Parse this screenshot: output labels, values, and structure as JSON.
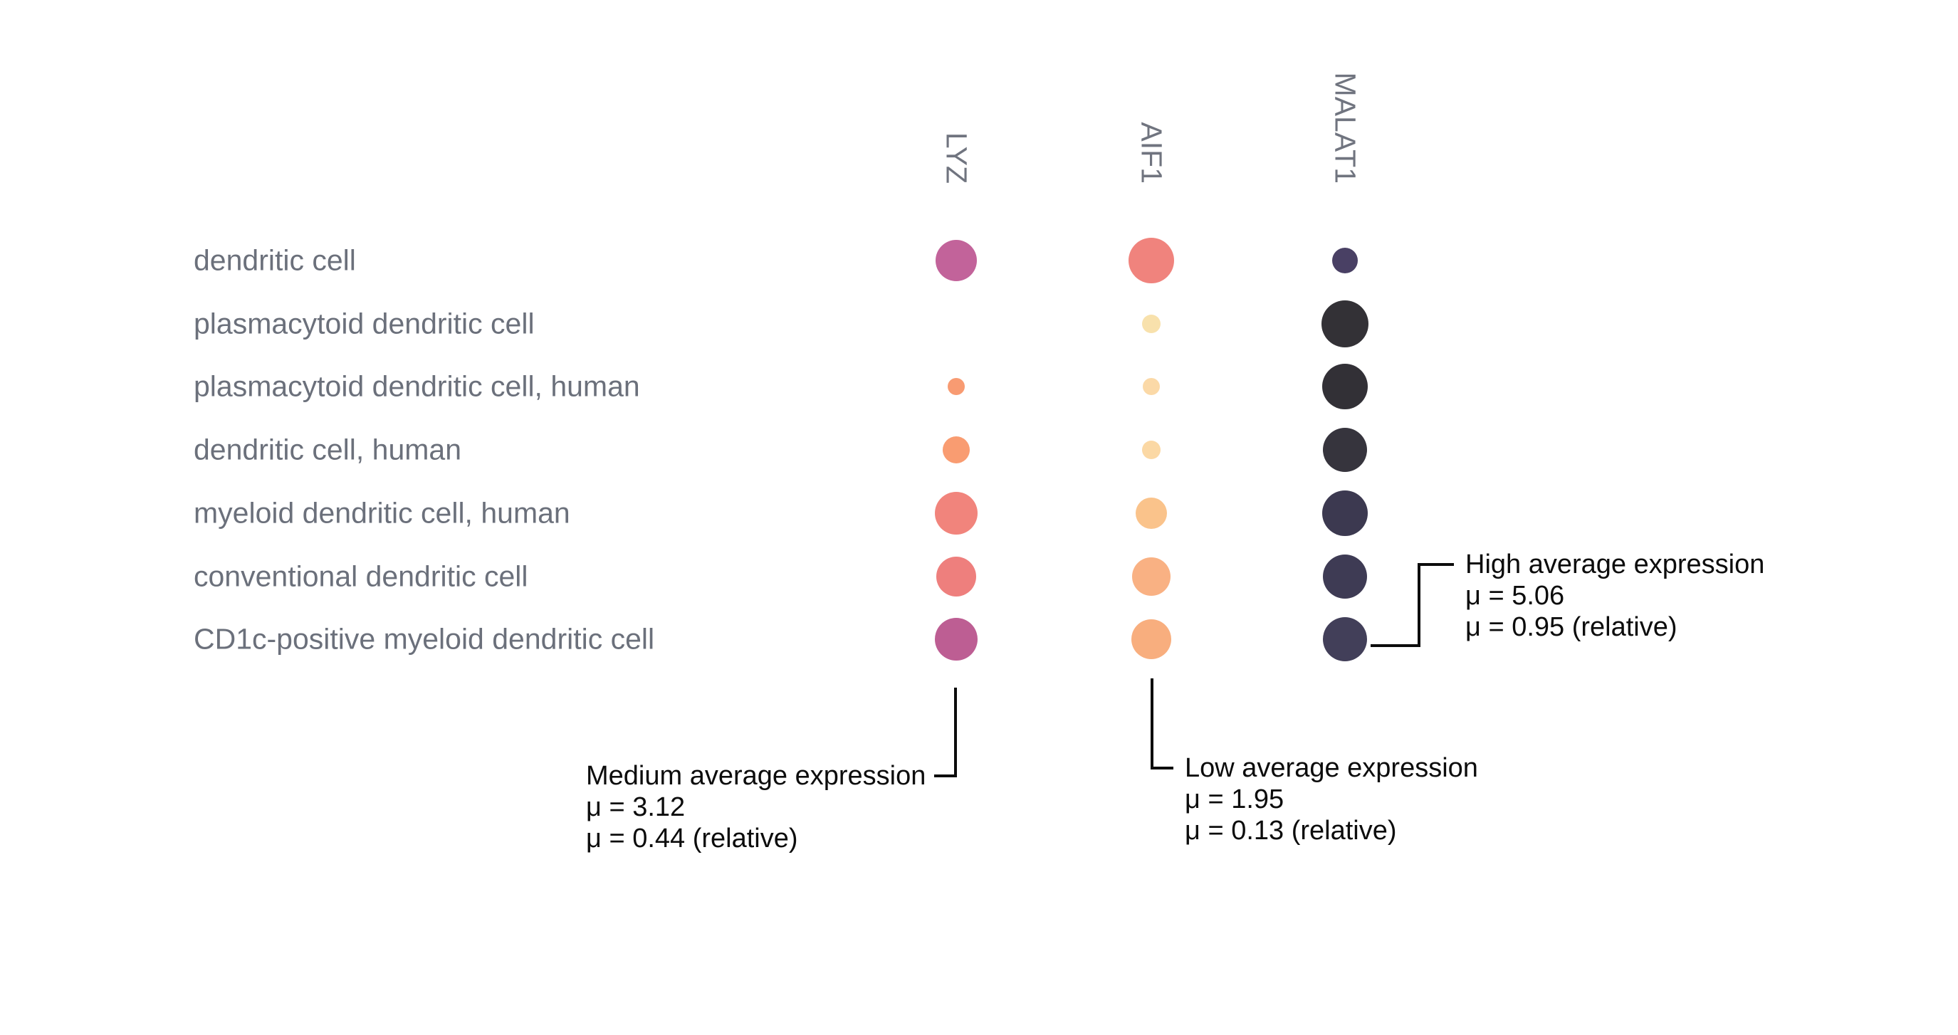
{
  "chart_data": {
    "type": "scatter",
    "subtype": "dot-plot-gene-expression",
    "title": "",
    "grid": false,
    "legend_position": "none",
    "columns": [
      "LYZ",
      "AIF1",
      "MALAT1"
    ],
    "rows": [
      "dendritic cell",
      "plasmacytoid dendritic cell",
      "plasmacytoid dendritic cell, human",
      "dendritic cell, human",
      "myeloid dendritic cell, human",
      "conventional dendritic cell",
      "CD1c-positive myeloid dendritic cell"
    ],
    "dots": [
      {
        "row": "dendritic cell",
        "cells": [
          {
            "gene": "LYZ",
            "radius": 29,
            "color": "#c2639a"
          },
          {
            "gene": "AIF1",
            "radius": 32,
            "color": "#f0837d"
          },
          {
            "gene": "MALAT1",
            "radius": 18,
            "color": "#494064"
          }
        ]
      },
      {
        "row": "plasmacytoid dendritic cell",
        "cells": [
          {
            "gene": "LYZ",
            "radius": 0,
            "color": null
          },
          {
            "gene": "AIF1",
            "radius": 13,
            "color": "#f8e1ac"
          },
          {
            "gene": "MALAT1",
            "radius": 33,
            "color": "#333136"
          }
        ]
      },
      {
        "row": "plasmacytoid dendritic cell, human",
        "cells": [
          {
            "gene": "LYZ",
            "radius": 12,
            "color": "#f89b72"
          },
          {
            "gene": "AIF1",
            "radius": 12,
            "color": "#fbd9a7"
          },
          {
            "gene": "MALAT1",
            "radius": 32,
            "color": "#323036"
          }
        ]
      },
      {
        "row": "dendritic cell, human",
        "cells": [
          {
            "gene": "LYZ",
            "radius": 19,
            "color": "#f99c71"
          },
          {
            "gene": "AIF1",
            "radius": 13,
            "color": "#fbd8a4"
          },
          {
            "gene": "MALAT1",
            "radius": 31,
            "color": "#36343d"
          }
        ]
      },
      {
        "row": "myeloid dendritic cell, human",
        "cells": [
          {
            "gene": "LYZ",
            "radius": 30,
            "color": "#f1847c"
          },
          {
            "gene": "AIF1",
            "radius": 22,
            "color": "#fac38b"
          },
          {
            "gene": "MALAT1",
            "radius": 32,
            "color": "#3c3950"
          }
        ]
      },
      {
        "row": "conventional dendritic cell",
        "cells": [
          {
            "gene": "LYZ",
            "radius": 28,
            "color": "#ee7f7d"
          },
          {
            "gene": "AIF1",
            "radius": 27,
            "color": "#f9b183"
          },
          {
            "gene": "MALAT1",
            "radius": 31,
            "color": "#3e3b54"
          }
        ]
      },
      {
        "row": "CD1c-positive myeloid dendritic cell",
        "cells": [
          {
            "gene": "LYZ",
            "radius": 30,
            "color": "#bd5e93"
          },
          {
            "gene": "AIF1",
            "radius": 28,
            "color": "#f8ae7e"
          },
          {
            "gene": "MALAT1",
            "radius": 31,
            "color": "#423f59"
          }
        ]
      }
    ],
    "annotations": [
      {
        "id": "medium",
        "column": "LYZ",
        "lines": [
          "Medium average expression",
          "μ = 3.12",
          "μ = 0.44 (relative)"
        ]
      },
      {
        "id": "low",
        "column": "AIF1",
        "lines": [
          "Low average expression",
          "μ = 1.95",
          "μ = 0.13 (relative)"
        ]
      },
      {
        "id": "high",
        "column": "MALAT1",
        "lines": [
          "High average expression",
          "μ = 5.06",
          "μ = 0.95 (relative)"
        ]
      }
    ]
  },
  "colors": {
    "background": "#ffffff",
    "label_gray": "#6b707b",
    "header_gray": "#70747f",
    "annotation_black": "#0c0c0c"
  }
}
